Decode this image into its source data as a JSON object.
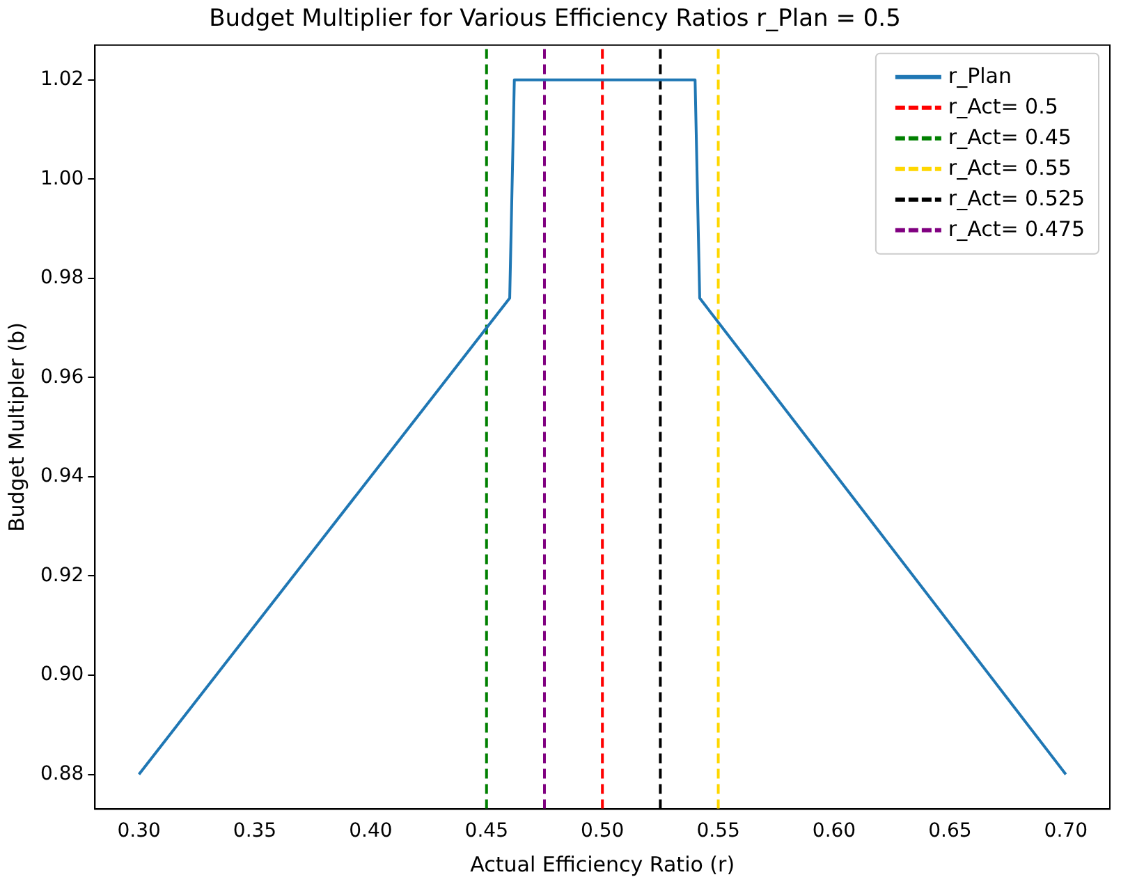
{
  "chart_data": {
    "type": "line",
    "title": "Budget Multiplier for Various Efficiency Ratios r_Plan = 0.5",
    "xlabel": "Actual Efficiency Ratio (r)",
    "ylabel": "Budget Multipler (b)",
    "series": [
      {
        "name": "r_Plan",
        "color": "#1f77b4",
        "x": [
          0.3,
          0.46,
          0.462,
          0.54,
          0.542,
          0.7
        ],
        "values": [
          0.88,
          0.976,
          1.02,
          1.02,
          0.976,
          0.88
        ]
      },
      {
        "name": "r_Act= 0.5",
        "color": "#ff0000",
        "line_style": "dashed",
        "x": [
          0.5,
          0.5
        ],
        "values": [
          0.873,
          1.027
        ]
      },
      {
        "name": "r_Act= 0.45",
        "color": "#008000",
        "line_style": "dashed",
        "x": [
          0.45,
          0.45
        ],
        "values": [
          0.873,
          1.027
        ]
      },
      {
        "name": "r_Act= 0.55",
        "color": "#ffd700",
        "line_style": "dashed",
        "x": [
          0.55,
          0.55
        ],
        "values": [
          0.873,
          1.027
        ]
      },
      {
        "name": "r_Act= 0.525",
        "color": "#000000",
        "line_style": "dashed",
        "x": [
          0.525,
          0.525
        ],
        "values": [
          0.873,
          1.027
        ]
      },
      {
        "name": "r_Act= 0.475",
        "color": "#800080",
        "line_style": "dashed",
        "x": [
          0.475,
          0.475
        ],
        "values": [
          0.873,
          1.027
        ]
      }
    ],
    "xlim": [
      0.281,
      0.719
    ],
    "xticks": [
      {
        "value": 0.3,
        "label": "0.30"
      },
      {
        "value": 0.35,
        "label": "0.35"
      },
      {
        "value": 0.4,
        "label": "0.40"
      },
      {
        "value": 0.45,
        "label": "0.45"
      },
      {
        "value": 0.5,
        "label": "0.50"
      },
      {
        "value": 0.55,
        "label": "0.55"
      },
      {
        "value": 0.6,
        "label": "0.60"
      },
      {
        "value": 0.65,
        "label": "0.65"
      },
      {
        "value": 0.7,
        "label": "0.70"
      }
    ],
    "ylim": [
      0.873,
      1.027
    ],
    "yticks": [
      {
        "value": 0.88,
        "label": "0.88"
      },
      {
        "value": 0.9,
        "label": "0.90"
      },
      {
        "value": 0.92,
        "label": "0.92"
      },
      {
        "value": 0.94,
        "label": "0.94"
      },
      {
        "value": 0.96,
        "label": "0.96"
      },
      {
        "value": 0.98,
        "label": "0.98"
      },
      {
        "value": 1.0,
        "label": "1.00"
      },
      {
        "value": 1.02,
        "label": "1.02"
      }
    ],
    "grid": false,
    "legend": "top right",
    "marker": "none",
    "line_style": "solid"
  }
}
